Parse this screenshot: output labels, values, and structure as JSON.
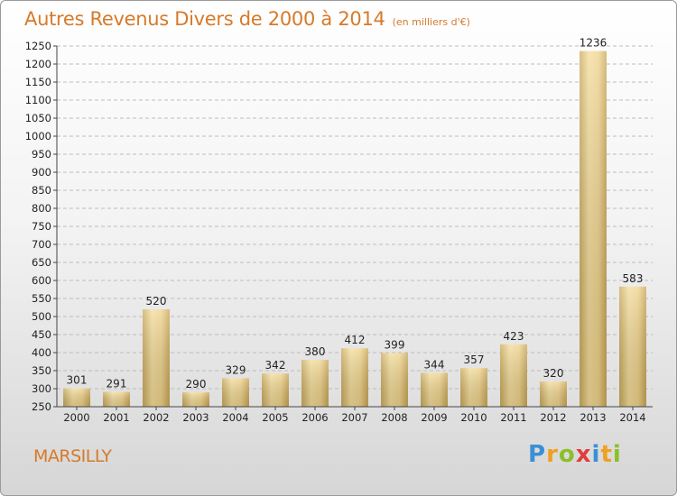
{
  "header": {
    "title": "Autres Revenus Divers de 2000 à 2014",
    "subtitle": "(en milliers d'€)"
  },
  "footer": {
    "place": "MARSILLY",
    "logo_letters": [
      "P",
      "r",
      "o",
      "x",
      "i",
      "t",
      "i"
    ],
    "logo_colors": [
      "#3a8fd6",
      "#f0a020",
      "#8cbf2a",
      "#e23c3c",
      "#3a8fd6",
      "#f0a020",
      "#8cbf2a"
    ]
  },
  "chart_data": {
    "type": "bar",
    "categories": [
      "2000",
      "2001",
      "2002",
      "2003",
      "2004",
      "2005",
      "2006",
      "2007",
      "2008",
      "2009",
      "2010",
      "2011",
      "2012",
      "2013",
      "2014"
    ],
    "values": [
      301,
      291,
      520,
      290,
      329,
      342,
      380,
      412,
      399,
      344,
      357,
      423,
      320,
      1236,
      583
    ],
    "ylim": [
      250,
      1250
    ],
    "yticks": [
      250,
      300,
      350,
      400,
      450,
      500,
      550,
      600,
      650,
      700,
      750,
      800,
      850,
      900,
      950,
      1000,
      1050,
      1100,
      1150,
      1200,
      1250
    ],
    "grid": true,
    "bar_color": "#e8c878"
  }
}
